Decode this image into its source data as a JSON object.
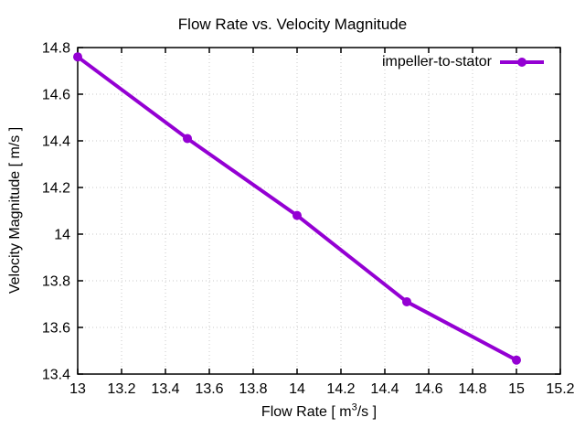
{
  "figure": {
    "background": "#ffffff"
  },
  "chart_data": {
    "type": "line",
    "title": "Flow Rate vs. Velocity Magnitude",
    "xlabel": "Flow Rate [ m³/s ]",
    "xlabel_parts": {
      "prefix": "Flow Rate [ m",
      "sup": "3",
      "suffix": "/s ]"
    },
    "ylabel": "Velocity Magnitude [ m/s ]",
    "xlim": [
      13,
      15.2
    ],
    "ylim": [
      13.4,
      14.8
    ],
    "x_ticks": [
      13,
      13.2,
      13.4,
      13.6,
      13.8,
      14,
      14.2,
      14.4,
      14.6,
      14.8,
      15,
      15.2
    ],
    "x_tick_labels": [
      "13",
      "13.2",
      "13.4",
      "13.6",
      "13.8",
      "14",
      "14.2",
      "14.4",
      "14.6",
      "14.8",
      "15",
      "15.2"
    ],
    "y_ticks": [
      13.4,
      13.6,
      13.8,
      14,
      14.2,
      14.4,
      14.6,
      14.8
    ],
    "y_tick_labels": [
      "13.4",
      "13.6",
      "13.8",
      "14",
      "14.2",
      "14.4",
      "14.6",
      "14.8"
    ],
    "grid": true,
    "legend": {
      "position": "top-right-inside",
      "entries": [
        "impeller-to-stator"
      ]
    },
    "series": [
      {
        "name": "impeller-to-stator",
        "color": "#9400d3",
        "marker": "filled-circle",
        "x": [
          13,
          13.5,
          14,
          14.5,
          15
        ],
        "y": [
          14.76,
          14.41,
          14.08,
          13.71,
          13.46
        ]
      }
    ],
    "colors": {
      "line": "#9400d3",
      "grid": "#c8c8c8",
      "border": "#000000",
      "text": "#000000"
    }
  }
}
